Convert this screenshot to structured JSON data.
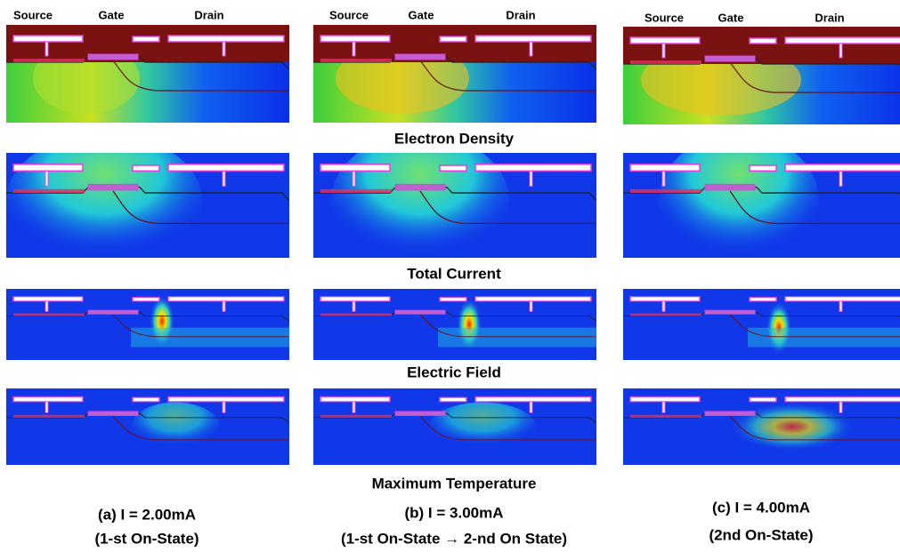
{
  "columns": [
    {
      "headers": [
        "Source",
        "Gate",
        "Drain"
      ],
      "caption": [
        "(a) I = 2.00mA",
        "(1-st On-State)"
      ]
    },
    {
      "headers": [
        "Source",
        "Gate",
        "Drain"
      ],
      "caption": [
        "(b) I = 3.00mA",
        "(1-st On-State → 2-nd On State)"
      ]
    },
    {
      "headers": [
        "Source",
        "Gate",
        "Drain"
      ],
      "caption": [
        "(c) I = 4.00mA",
        "(2nd On-State)"
      ]
    }
  ],
  "row_labels": [
    "Electron Density",
    "Total Current",
    "Electric Field",
    "Maximum Temperature"
  ]
}
